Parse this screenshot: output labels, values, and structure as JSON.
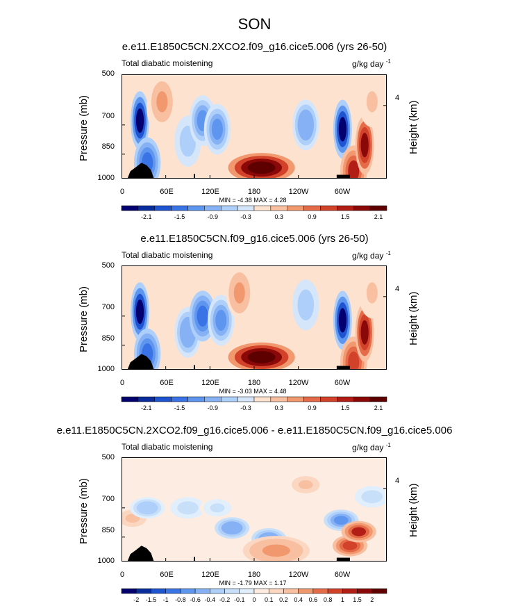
{
  "figure_title": "SON",
  "chart_data": [
    {
      "type": "heatmap",
      "title": "e.e11.E1850C5CN.2XCO2.f09_g16.cice5.006 (yrs 26-50)",
      "left_label": "Total diabatic moistening",
      "units_label": "g/kg day",
      "units_exponent": "-1",
      "ylabel": "Pressure (mb)",
      "y2label": "Height (km)",
      "y_ticks": [
        "500",
        "700",
        "850",
        "1000"
      ],
      "y2_ticks": [
        "4"
      ],
      "x_ticks": [
        "0",
        "60E",
        "120E",
        "180",
        "120W",
        "60W"
      ],
      "min_label": "MIN = -4.38  MAX =  4.28",
      "colorbar_levels": [
        -2.4,
        -2.1,
        -1.8,
        -1.5,
        -1.2,
        -0.9,
        -0.6,
        -0.3,
        0,
        0.3,
        0.6,
        0.9,
        1.2,
        1.5,
        1.8,
        2.1,
        2.4
      ],
      "colorbar_labels": [
        "-2.1",
        "-1.5",
        "-0.9",
        "-0.3",
        "0.3",
        "0.9",
        "1.5",
        "2.1"
      ],
      "features": [
        {
          "lon": 25,
          "p": 680,
          "value": -2.4
        },
        {
          "lon": 35,
          "p": 900,
          "value": -1.5
        },
        {
          "lon": 52,
          "p": 620,
          "value": 0.3
        },
        {
          "lon": 90,
          "p": 780,
          "value": -0.6
        },
        {
          "lon": 110,
          "p": 680,
          "value": -1.2
        },
        {
          "lon": 130,
          "p": 720,
          "value": -1.2
        },
        {
          "lon": 190,
          "p": 930,
          "value": 2.4
        },
        {
          "lon": 250,
          "p": 700,
          "value": -0.9
        },
        {
          "lon": 300,
          "p": 720,
          "value": -2.4
        },
        {
          "lon": 315,
          "p": 950,
          "value": 1.5
        },
        {
          "lon": 330,
          "p": 800,
          "value": 1.8
        },
        {
          "lon": 55,
          "p": 600,
          "value": 0.6
        },
        {
          "lon": 340,
          "p": 600,
          "value": 0.3
        }
      ]
    },
    {
      "type": "heatmap",
      "title": "e.e11.E1850C5CN.f09_g16.cice5.006 (yrs 26-50)",
      "left_label": "Total diabatic moistening",
      "units_label": "g/kg day",
      "units_exponent": "-1",
      "ylabel": "Pressure (mb)",
      "y2label": "Height (km)",
      "y_ticks": [
        "500",
        "700",
        "850",
        "1000"
      ],
      "y2_ticks": [
        "4"
      ],
      "x_ticks": [
        "0",
        "60E",
        "120E",
        "180",
        "120W",
        "60W"
      ],
      "min_label": "MIN = -3.03  MAX =  4.48",
      "colorbar_levels": [
        -2.4,
        -2.1,
        -1.8,
        -1.5,
        -1.2,
        -0.9,
        -0.6,
        -0.3,
        0,
        0.3,
        0.6,
        0.9,
        1.2,
        1.5,
        1.8,
        2.1,
        2.4
      ],
      "colorbar_labels": [
        "-2.1",
        "-1.5",
        "-0.9",
        "-0.3",
        "0.3",
        "0.9",
        "1.5",
        "2.1"
      ],
      "features": [
        {
          "lon": 25,
          "p": 680,
          "value": -2.4
        },
        {
          "lon": 35,
          "p": 900,
          "value": -1.5
        },
        {
          "lon": 90,
          "p": 780,
          "value": -0.9
        },
        {
          "lon": 110,
          "p": 700,
          "value": -1.5
        },
        {
          "lon": 135,
          "p": 720,
          "value": -1.2
        },
        {
          "lon": 190,
          "p": 920,
          "value": 2.4
        },
        {
          "lon": 250,
          "p": 650,
          "value": -0.6
        },
        {
          "lon": 300,
          "p": 720,
          "value": -2.4
        },
        {
          "lon": 315,
          "p": 950,
          "value": 1.2
        },
        {
          "lon": 330,
          "p": 780,
          "value": 1.8
        },
        {
          "lon": 160,
          "p": 600,
          "value": 0.6
        },
        {
          "lon": 340,
          "p": 600,
          "value": 0.3
        }
      ]
    },
    {
      "type": "heatmap",
      "title": "e.e11.E1850C5CN.2XCO2.f09_g16.cice5.006 - e.e11.E1850C5CN.f09_g16.cice5.006",
      "left_label": "Total diabatic moistening",
      "units_label": "g/kg day",
      "units_exponent": "-1",
      "ylabel": "Pressure (mb)",
      "y2label": "Height (km)",
      "y_ticks": [
        "500",
        "700",
        "850",
        "1000"
      ],
      "y2_ticks": [
        "4"
      ],
      "x_ticks": [
        "0",
        "60E",
        "120E",
        "180",
        "120W",
        "60W"
      ],
      "min_label": "MIN = -1.79  MAX =  1.17",
      "colorbar_levels": [
        -2.5,
        -2,
        -1.5,
        -1,
        -0.8,
        -0.6,
        -0.4,
        -0.2,
        -0.1,
        0,
        0.1,
        0.2,
        0.4,
        0.6,
        0.8,
        1,
        1.5,
        2,
        2.5
      ],
      "colorbar_labels": [
        "-2",
        "-1.5",
        "-1",
        "-0.8",
        "-0.6",
        "-0.4",
        "-0.2",
        "-0.1",
        "0",
        "0.1",
        "0.2",
        "0.4",
        "0.6",
        "0.8",
        "1",
        "1.5",
        "2"
      ],
      "features": [
        {
          "lon": 15,
          "p": 750,
          "value": 0.2
        },
        {
          "lon": 35,
          "p": 700,
          "value": -0.4
        },
        {
          "lon": 90,
          "p": 700,
          "value": -0.2
        },
        {
          "lon": 130,
          "p": 700,
          "value": -0.1
        },
        {
          "lon": 150,
          "p": 800,
          "value": -0.6
        },
        {
          "lon": 200,
          "p": 860,
          "value": -0.6
        },
        {
          "lon": 210,
          "p": 930,
          "value": 0.4
        },
        {
          "lon": 250,
          "p": 600,
          "value": 0.2
        },
        {
          "lon": 298,
          "p": 760,
          "value": -0.8
        },
        {
          "lon": 310,
          "p": 900,
          "value": 0.8
        },
        {
          "lon": 322,
          "p": 820,
          "value": 1.0
        },
        {
          "lon": 340,
          "p": 650,
          "value": -0.2
        }
      ]
    }
  ]
}
